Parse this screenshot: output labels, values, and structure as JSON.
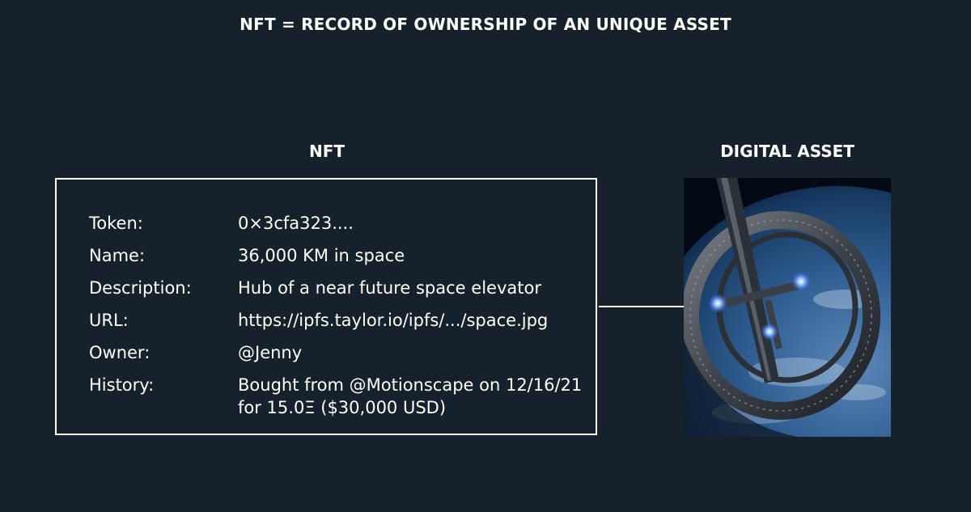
{
  "title": "NFT = RECORD OF OWNERSHIP OF AN UNIQUE ASSET",
  "nft_label": "NFT",
  "asset_label": "DIGITAL ASSET",
  "record": [
    {
      "key": "Token:",
      "value": "0×3cfa323...."
    },
    {
      "key": "Name:",
      "value": "36,000 KM in space"
    },
    {
      "key": "Description:",
      "value": "Hub of a near future space elevator"
    },
    {
      "key": "URL:",
      "value": "https://ipfs.taylor.io/ipfs/.../space.jpg"
    },
    {
      "key": "Owner:",
      "value": "@Jenny"
    },
    {
      "key": "History:",
      "value": "Bought from @Motionscape on 12/16/21 for 15.0Ξ ($30,000 USD)"
    }
  ],
  "colors": {
    "background": "#17212c",
    "foreground": "#ffffff",
    "glow": "#6aa8ff"
  }
}
